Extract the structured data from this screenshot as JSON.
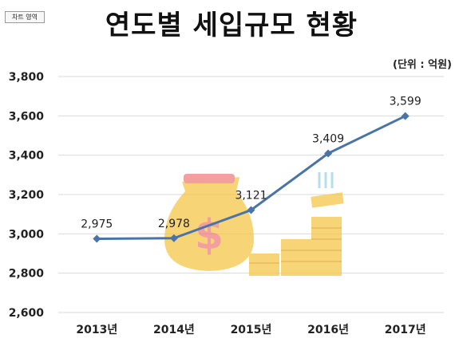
{
  "ui": {
    "chart_tag": "차트 영역"
  },
  "chart_data": {
    "type": "line",
    "title": "연도별 세입규모 현황",
    "unit_note": "(단위 : 억원)",
    "categories": [
      "2013년",
      "2014년",
      "2015년",
      "2016년",
      "2017년"
    ],
    "values": [
      2975,
      2978,
      3121,
      3409,
      3599
    ],
    "data_labels": [
      "2,975",
      "2,978",
      "3,121",
      "3,409",
      "3,599"
    ],
    "ylim": [
      2600,
      3800
    ],
    "yticks": [
      2600,
      2800,
      3000,
      3200,
      3400,
      3600,
      3800
    ],
    "ytick_labels": [
      "2,600",
      "2,800",
      "3,000",
      "3,200",
      "3,400",
      "3,600",
      "3,800"
    ],
    "grid": true,
    "legend": "none",
    "colors": {
      "line": "#4a74a8",
      "grid": "#d9d9d9",
      "decor": "#f5c84a",
      "decor_accent": "#f07f7f"
    }
  }
}
